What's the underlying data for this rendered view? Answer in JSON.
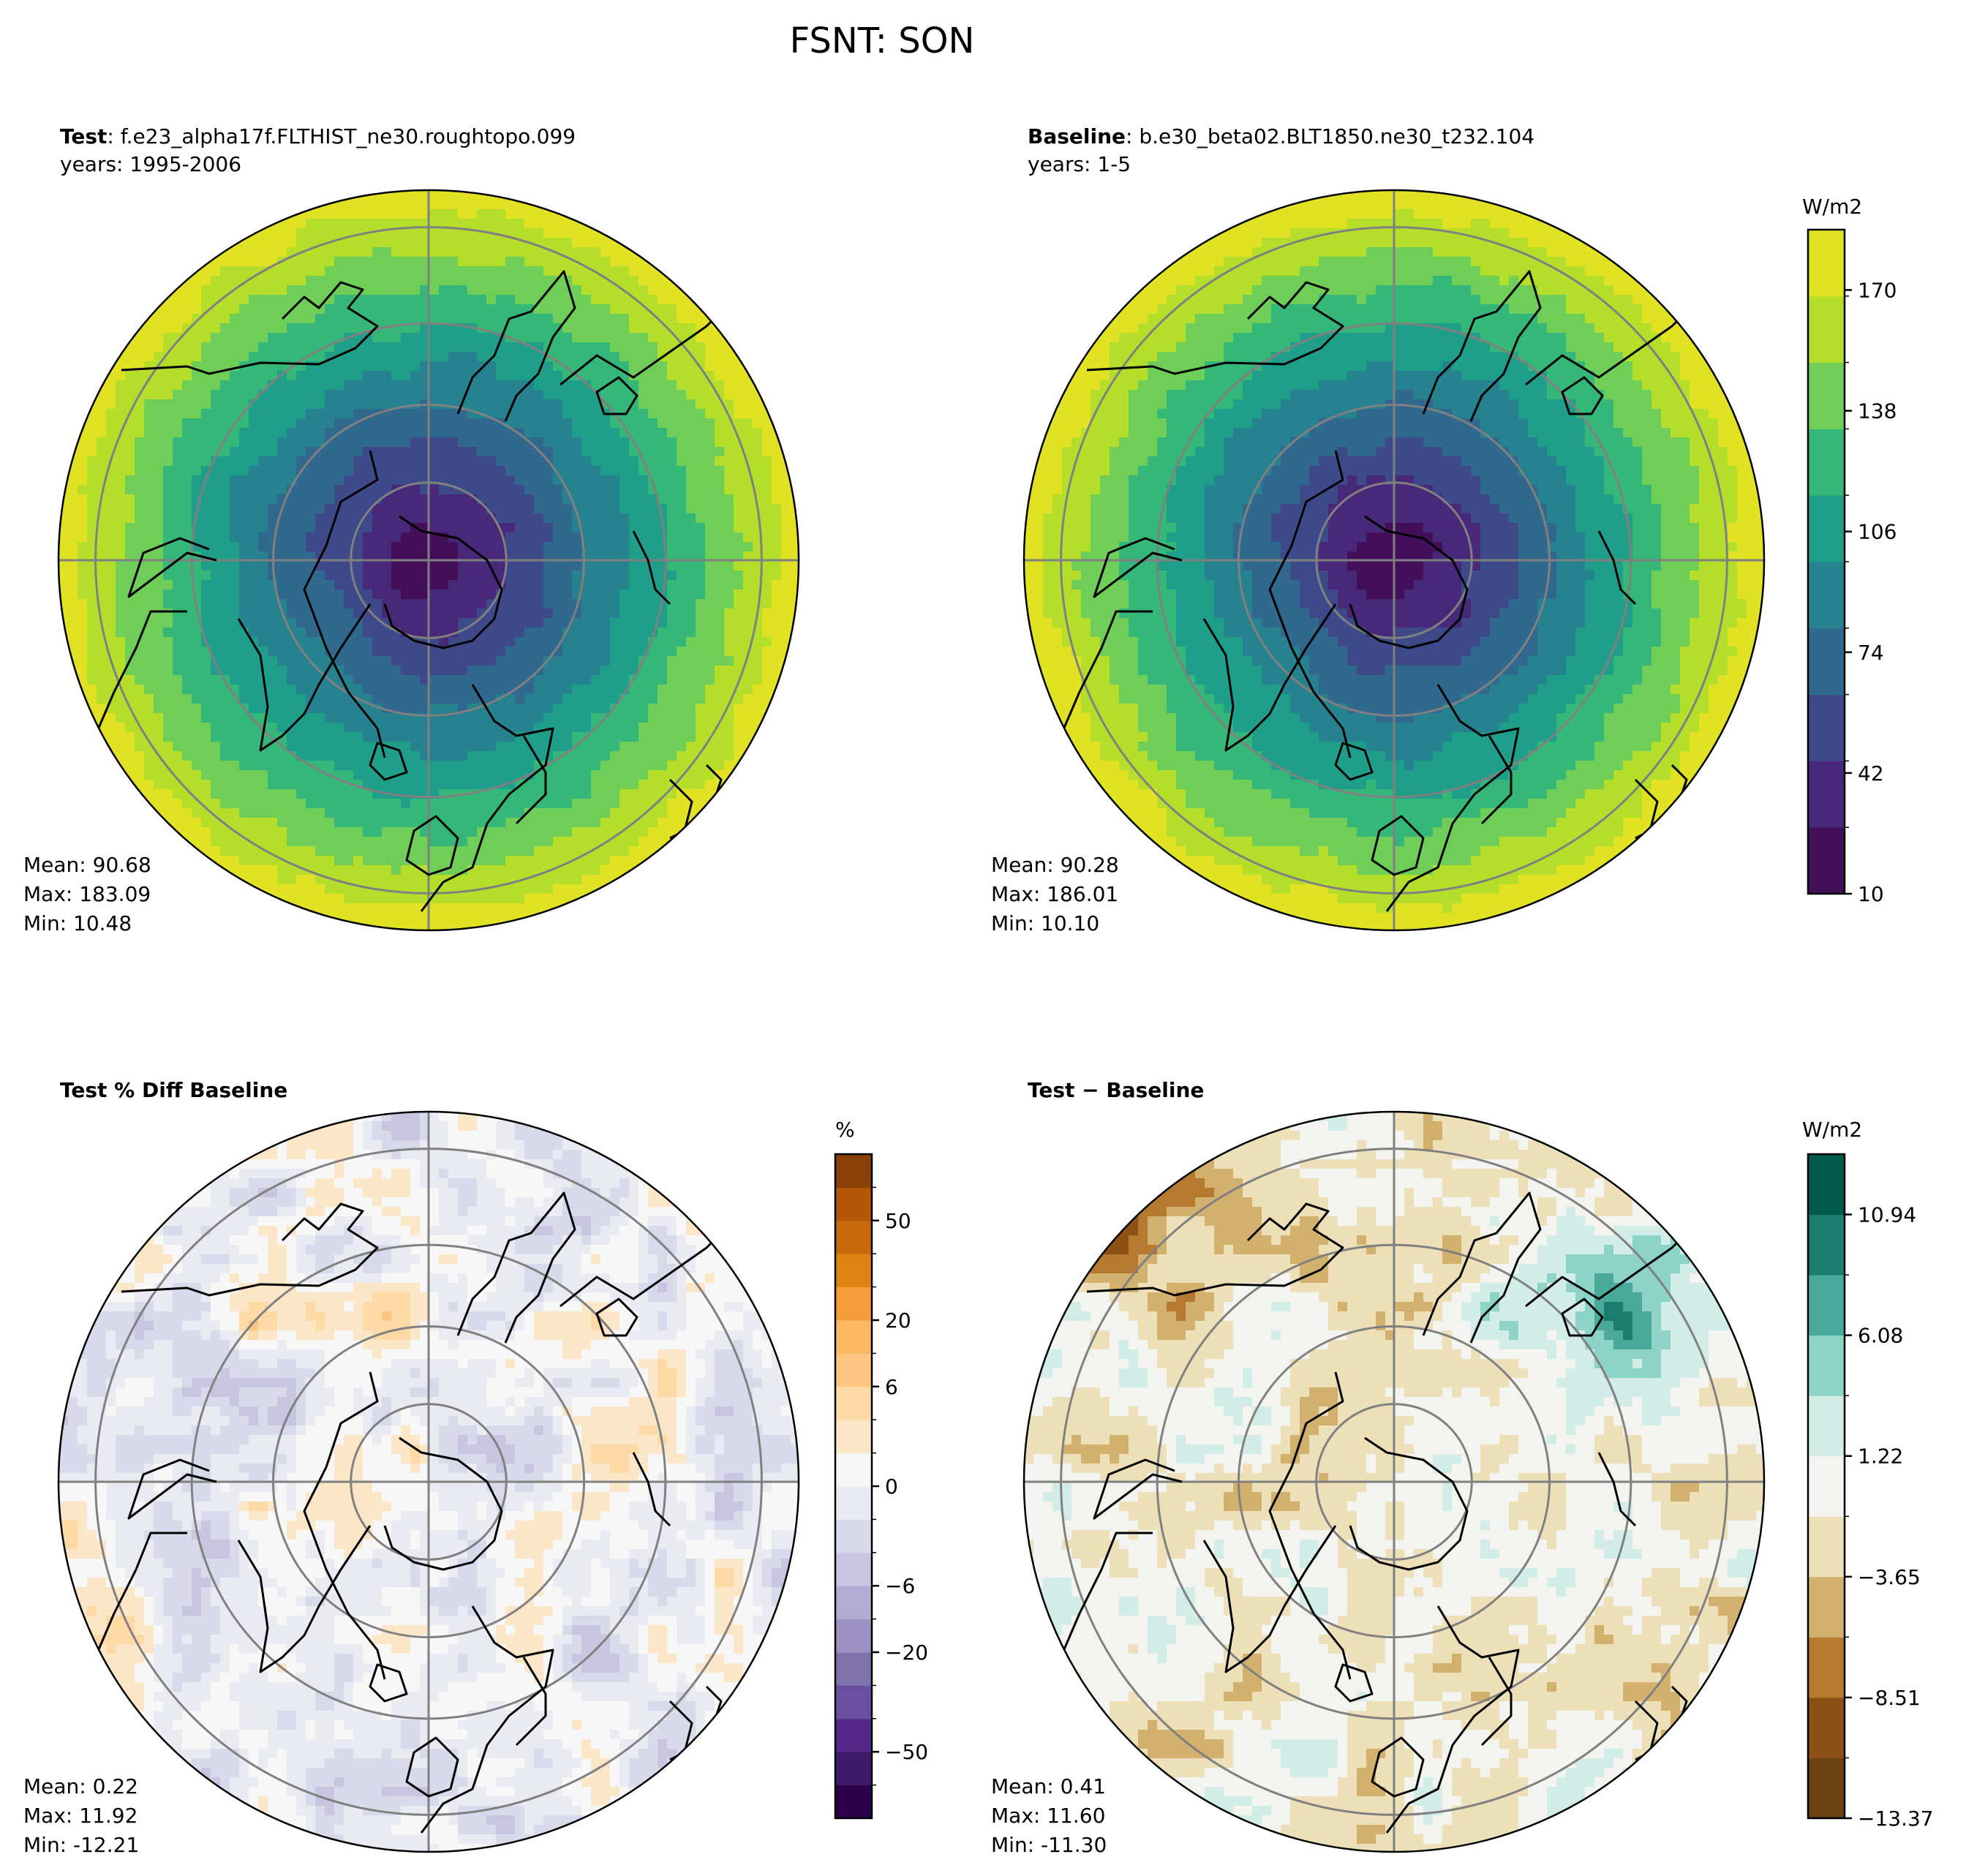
{
  "figure": {
    "title": "FSNT: SON"
  },
  "chart_data": [
    {
      "type": "heatmap",
      "projection": "north-polar-stereographic",
      "title_bold": "Test",
      "title_rest": ": f.e23_alpha17f.FLTHIST_ne30.roughtopo.099",
      "subtitle": "years: 1995-2006",
      "stats": {
        "mean": "Mean: 90.68",
        "max": "Max: 183.09",
        "min": "Min: 10.48"
      },
      "field": {
        "pole_value": 12,
        "edge_value": 178,
        "min": 10.48,
        "max": 183.09,
        "mean": 90.68
      },
      "colormap": "viridis"
    },
    {
      "type": "heatmap",
      "projection": "north-polar-stereographic",
      "title_bold": "Baseline",
      "title_rest": ": b.e30_beta02.BLT1850.ne30_t232.104",
      "subtitle": "years: 1-5",
      "stats": {
        "mean": "Mean: 90.28",
        "max": "Max: 186.01",
        "min": "Min: 10.10"
      },
      "field": {
        "pole_value": 12,
        "edge_value": 180,
        "min": 10.1,
        "max": 186.01,
        "mean": 90.28
      },
      "colormap": "viridis",
      "colorbar": {
        "unit": "W/m2",
        "range": [
          10,
          186
        ],
        "ticks": [
          10,
          42,
          74,
          106,
          138,
          170
        ],
        "tick_labels": [
          "10",
          "42",
          "74",
          "106",
          "138",
          "170"
        ],
        "colors": [
          "#440f5a",
          "#482878",
          "#3e4989",
          "#31688e",
          "#26828e",
          "#1f9e89",
          "#35b779",
          "#6ece58",
          "#b5de2b",
          "#e1e223"
        ]
      }
    },
    {
      "type": "heatmap",
      "projection": "north-polar-stereographic",
      "title_bold": "Test % Diff Baseline",
      "title_rest": "",
      "subtitle": "",
      "stats": {
        "mean": "Mean:  0.22",
        "max": "Max: 11.92",
        "min": "Min: -12.21"
      },
      "field": {
        "min": -12.21,
        "max": 11.92,
        "mean": 0.22
      },
      "colormap": "PuOr_r",
      "colorbar": {
        "unit": "%",
        "ticks": [
          -50,
          -20,
          -6,
          0,
          6,
          20,
          50
        ],
        "tick_labels": [
          "−50",
          "−20",
          "−6",
          "0",
          "6",
          "20",
          "50"
        ],
        "colors": [
          "#2d004b",
          "#3f1a6b",
          "#542788",
          "#6a4fa0",
          "#8073ac",
          "#9d91c2",
          "#b2abd2",
          "#c9c4e0",
          "#d8daeb",
          "#eaeaf2",
          "#f7f7f7",
          "#fbe6c8",
          "#fdd9a6",
          "#fdc57f",
          "#fdb863",
          "#f59c3b",
          "#e08214",
          "#c86a0b",
          "#b35806",
          "#8a4006"
        ]
      }
    },
    {
      "type": "heatmap",
      "projection": "north-polar-stereographic",
      "title_bold": "Test",
      "title_rest": " − Baseline",
      "subtitle": "",
      "stats": {
        "mean": "Mean:  0.41",
        "max": "Max: 11.60",
        "min": "Min: -11.30"
      },
      "field": {
        "min": -11.3,
        "max": 11.6,
        "mean": 0.41
      },
      "colormap": "BrBG",
      "colorbar": {
        "unit": "W/m2",
        "ticks": [
          -13.37,
          -8.51,
          -3.65,
          1.22,
          6.08,
          10.94
        ],
        "tick_labels": [
          "−13.37",
          "−8.51",
          "−3.65",
          "1.22",
          "6.08",
          "10.94"
        ],
        "colors": [
          "#6b4210",
          "#8c5114",
          "#b57a30",
          "#d2b06e",
          "#ede0b9",
          "#f3f3f0",
          "#d2ede8",
          "#8ed3c8",
          "#4aa99a",
          "#1c7c70",
          "#005b4c"
        ]
      }
    }
  ]
}
